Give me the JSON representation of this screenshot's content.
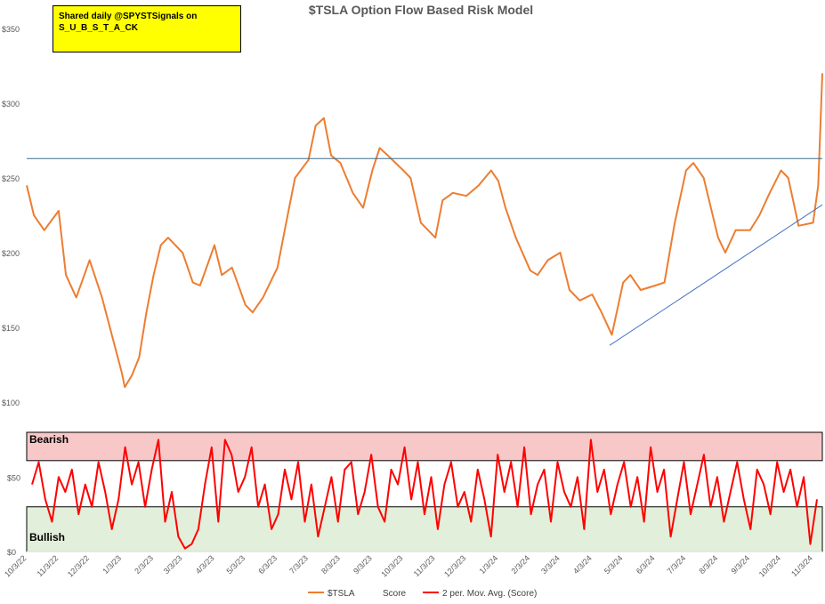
{
  "chart_data": [
    {
      "type": "line",
      "title": "$TSLA Option Flow Based Risk Model",
      "ylim": [
        100,
        350
      ],
      "y_ticks": [
        "$100",
        "$150",
        "$200",
        "$250",
        "$300",
        "$350"
      ],
      "grid": false,
      "x_ticks": [
        "10/3/22",
        "11/3/22",
        "12/3/22",
        "1/3/23",
        "2/3/23",
        "3/3/23",
        "4/3/23",
        "5/3/23",
        "6/3/23",
        "7/3/23",
        "8/3/23",
        "9/3/23",
        "10/3/23",
        "11/3/23",
        "12/3/23",
        "1/3/24",
        "2/3/24",
        "3/3/24",
        "4/3/24",
        "5/3/24",
        "6/3/24",
        "7/3/24",
        "8/3/24",
        "9/3/24",
        "10/3/24",
        "11/3/24"
      ],
      "series": [
        {
          "name": "$TSLA",
          "color": "#ed7d31",
          "x": [
            "10/3/22",
            "10/10/22",
            "10/20/22",
            "11/3/22",
            "11/10/22",
            "11/20/22",
            "12/3/22",
            "12/15/22",
            "1/3/23",
            "1/6/23",
            "1/13/23",
            "1/20/23",
            "1/27/23",
            "2/3/23",
            "2/10/23",
            "2/17/23",
            "3/3/23",
            "3/13/23",
            "3/20/23",
            "4/3/23",
            "4/10/23",
            "4/20/23",
            "5/3/23",
            "5/10/23",
            "5/20/23",
            "6/3/23",
            "6/10/23",
            "6/20/23",
            "7/3/23",
            "7/10/23",
            "7/18/23",
            "7/25/23",
            "8/3/23",
            "8/15/23",
            "8/25/23",
            "9/3/23",
            "9/10/23",
            "9/18/23",
            "10/3/23",
            "10/10/23",
            "10/20/23",
            "11/3/23",
            "11/10/23",
            "11/20/23",
            "12/3/23",
            "12/15/23",
            "12/27/23",
            "1/3/24",
            "1/10/24",
            "1/20/24",
            "2/3/24",
            "2/10/24",
            "2/20/24",
            "3/3/24",
            "3/12/24",
            "3/22/24",
            "4/3/24",
            "4/12/24",
            "4/22/24",
            "5/3/24",
            "5/10/24",
            "5/20/24",
            "6/3/24",
            "6/12/24",
            "6/22/24",
            "7/3/24",
            "7/10/24",
            "7/20/24",
            "8/3/24",
            "8/10/24",
            "8/20/24",
            "9/3/24",
            "9/12/24",
            "9/22/24",
            "10/3/24",
            "10/10/24",
            "10/20/24",
            "11/3/24",
            "11/8/24",
            "11/12/24"
          ],
          "values": [
            245,
            225,
            215,
            228,
            185,
            170,
            195,
            170,
            120,
            110,
            118,
            130,
            160,
            185,
            205,
            210,
            200,
            180,
            178,
            205,
            185,
            190,
            165,
            160,
            170,
            190,
            215,
            250,
            262,
            285,
            290,
            265,
            260,
            240,
            230,
            255,
            270,
            265,
            255,
            250,
            220,
            210,
            235,
            240,
            238,
            245,
            255,
            248,
            230,
            210,
            188,
            185,
            195,
            200,
            175,
            168,
            172,
            160,
            145,
            180,
            185,
            175,
            178,
            180,
            220,
            255,
            260,
            250,
            210,
            200,
            215,
            215,
            225,
            240,
            255,
            250,
            218,
            220,
            245,
            320
          ]
        },
        {
          "name": "trendline-1",
          "color": "#4472c4",
          "x": [
            "4/20/24",
            "11/12/24"
          ],
          "values": [
            138,
            232
          ]
        },
        {
          "name": "resistance-line",
          "color": "#3a6b8c",
          "x": [
            "10/3/22",
            "11/12/24"
          ],
          "values": [
            263,
            263
          ]
        }
      ]
    },
    {
      "type": "line",
      "ylim": [
        0,
        80
      ],
      "y_ticks": [
        "$0",
        "$50"
      ],
      "zones": [
        {
          "label": "Bearish",
          "range": [
            61,
            80
          ],
          "color": "#f8c8c8"
        },
        {
          "label": "Bullish",
          "range": [
            0,
            30
          ],
          "color": "#e2efda"
        }
      ],
      "series": [
        {
          "name": "2 per. Mov. Avg. (Score)",
          "color": "#ff0000",
          "values": [
            45,
            60,
            35,
            20,
            50,
            40,
            55,
            25,
            45,
            30,
            60,
            40,
            15,
            35,
            70,
            45,
            60,
            30,
            55,
            75,
            20,
            40,
            10,
            2,
            5,
            15,
            45,
            70,
            20,
            75,
            65,
            40,
            50,
            70,
            30,
            45,
            15,
            25,
            55,
            35,
            60,
            20,
            45,
            10,
            30,
            50,
            20,
            55,
            60,
            25,
            40,
            65,
            30,
            20,
            55,
            45,
            70,
            35,
            60,
            25,
            50,
            15,
            45,
            60,
            30,
            40,
            20,
            55,
            35,
            10,
            65,
            40,
            60,
            30,
            70,
            25,
            45,
            55,
            20,
            60,
            40,
            30,
            50,
            15,
            75,
            40,
            55,
            25,
            45,
            60,
            30,
            50,
            20,
            70,
            40,
            55,
            10,
            35,
            60,
            25,
            45,
            65,
            30,
            50,
            20,
            40,
            60,
            35,
            15,
            55,
            45,
            25,
            60,
            40,
            55,
            30,
            50,
            5,
            35
          ]
        }
      ]
    }
  ],
  "legend": [
    {
      "label": "$TSLA",
      "color": "#ed7d31"
    },
    {
      "label": "Score",
      "color": ""
    },
    {
      "label": "2 per. Mov. Avg. (Score)",
      "color": "#ff0000"
    }
  ],
  "note": {
    "line1": "Shared daily @SPYSTSignals on",
    "line2": "S_U_B_S_T_A_CK"
  }
}
